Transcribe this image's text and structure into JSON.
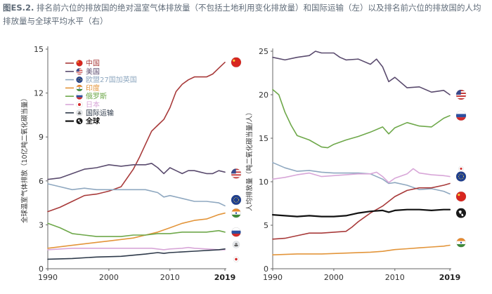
{
  "caption": {
    "figure_id": "图ES.2.",
    "text": "排名前六位的排放国的绝对温室气体排放量（不包括土地利用变化排放量）和国际运输（左）以及排名前六位的排放国的人均排放量与全球平均水平（右）"
  },
  "colors": {
    "china": "#a83a3a",
    "usa": "#5a4b6e",
    "eu27uk": "#8fa8c0",
    "india": "#e3953a",
    "russia": "#6ea84a",
    "japan": "#d8a6d8",
    "intl_transport": "#2e3a4a",
    "world": "#111111"
  },
  "chart_data": [
    {
      "type": "line",
      "ylabel": "全球温室气体排放（10亿吨二氧化碳当量）",
      "xlim": [
        1990,
        2019
      ],
      "ylim": [
        0,
        15
      ],
      "xticks": [
        "1990",
        "2000",
        "2010",
        "2019"
      ],
      "yticks": [
        "0",
        "3",
        "6",
        "9",
        "12",
        "15"
      ],
      "legend": [
        {
          "key": "china",
          "label": "中国",
          "icon": "china-flag-icon"
        },
        {
          "key": "usa",
          "label": "美国",
          "icon": "usa-flag-icon"
        },
        {
          "key": "eu27uk",
          "label": "欧盟27国加英国",
          "icon": "eu-flag-icon"
        },
        {
          "key": "india",
          "label": "印度",
          "icon": "india-flag-icon"
        },
        {
          "key": "russia",
          "label": "俄罗斯",
          "icon": "russia-flag-icon"
        },
        {
          "key": "japan",
          "label": "日本",
          "icon": "japan-flag-icon"
        },
        {
          "key": "intl_transport",
          "label": "国际运输",
          "icon": "ship-icon"
        },
        {
          "key": "world",
          "label": "全球",
          "icon": "globe-icon"
        }
      ],
      "series": [
        {
          "key": "china",
          "x": [
            1990,
            1992,
            1994,
            1996,
            1998,
            2000,
            2002,
            2004,
            2005,
            2006,
            2007,
            2008,
            2009,
            2010,
            2011,
            2012,
            2013,
            2014,
            2015,
            2016,
            2017,
            2018,
            2019
          ],
          "y": [
            3.9,
            4.2,
            4.6,
            5.0,
            5.1,
            5.3,
            5.6,
            6.8,
            7.6,
            8.5,
            9.4,
            9.8,
            10.2,
            11.0,
            12.1,
            12.6,
            12.9,
            13.1,
            13.1,
            13.1,
            13.3,
            13.7,
            14.1
          ]
        },
        {
          "key": "usa",
          "x": [
            1990,
            1992,
            1994,
            1996,
            1998,
            2000,
            2002,
            2004,
            2006,
            2007,
            2008,
            2009,
            2010,
            2011,
            2012,
            2013,
            2014,
            2015,
            2016,
            2017,
            2018,
            2019
          ],
          "y": [
            6.1,
            6.2,
            6.5,
            6.8,
            6.9,
            7.1,
            7.0,
            7.1,
            7.1,
            7.2,
            6.9,
            6.5,
            6.9,
            6.7,
            6.5,
            6.7,
            6.7,
            6.6,
            6.5,
            6.5,
            6.7,
            6.6
          ]
        },
        {
          "key": "eu27uk",
          "x": [
            1990,
            1992,
            1994,
            1996,
            1998,
            2000,
            2002,
            2004,
            2006,
            2008,
            2009,
            2010,
            2012,
            2014,
            2016,
            2018,
            2019
          ],
          "y": [
            5.8,
            5.6,
            5.4,
            5.5,
            5.4,
            5.4,
            5.4,
            5.4,
            5.4,
            5.2,
            4.9,
            5.0,
            4.8,
            4.6,
            4.6,
            4.5,
            4.3
          ]
        },
        {
          "key": "india",
          "x": [
            1990,
            1994,
            1998,
            2000,
            2002,
            2004,
            2006,
            2008,
            2010,
            2012,
            2014,
            2016,
            2018,
            2019
          ],
          "y": [
            1.4,
            1.6,
            1.8,
            1.9,
            2.0,
            2.1,
            2.3,
            2.5,
            2.8,
            3.1,
            3.3,
            3.4,
            3.7,
            3.8
          ]
        },
        {
          "key": "russia",
          "x": [
            1990,
            1992,
            1994,
            1996,
            1998,
            2000,
            2002,
            2004,
            2006,
            2008,
            2010,
            2012,
            2014,
            2016,
            2018,
            2019
          ],
          "y": [
            3.1,
            2.8,
            2.4,
            2.3,
            2.2,
            2.2,
            2.2,
            2.3,
            2.3,
            2.4,
            2.4,
            2.5,
            2.5,
            2.5,
            2.6,
            2.5
          ]
        },
        {
          "key": "japan",
          "x": [
            1990,
            1994,
            1998,
            2000,
            2004,
            2007,
            2009,
            2010,
            2012,
            2013,
            2014,
            2016,
            2018,
            2019
          ],
          "y": [
            1.3,
            1.4,
            1.4,
            1.4,
            1.4,
            1.4,
            1.3,
            1.35,
            1.4,
            1.45,
            1.4,
            1.35,
            1.3,
            1.3
          ]
        },
        {
          "key": "intl_transport",
          "x": [
            1990,
            1994,
            1998,
            2002,
            2006,
            2008,
            2009,
            2010,
            2014,
            2018,
            2019
          ],
          "y": [
            0.65,
            0.7,
            0.8,
            0.85,
            1.0,
            1.1,
            1.05,
            1.1,
            1.2,
            1.3,
            1.35
          ]
        }
      ]
    },
    {
      "type": "line",
      "ylabel": "人均排放量（吨二氧化碳当量/人）",
      "xlim": [
        1990,
        2019
      ],
      "ylim": [
        0,
        25
      ],
      "xticks": [
        "1990",
        "2000",
        "2010",
        "2019"
      ],
      "yticks": [
        "0",
        "5",
        "10",
        "15",
        "20",
        "25"
      ],
      "series": [
        {
          "key": "usa",
          "x": [
            1990,
            1992,
            1994,
            1996,
            1997,
            1998,
            2000,
            2001,
            2002,
            2004,
            2006,
            2007,
            2008,
            2009,
            2010,
            2012,
            2014,
            2016,
            2018,
            2019
          ],
          "y": [
            24.3,
            24.0,
            24.3,
            24.5,
            25.0,
            24.8,
            24.8,
            24.3,
            24.0,
            24.1,
            23.5,
            24.1,
            23.2,
            21.5,
            22.0,
            20.8,
            20.9,
            20.3,
            20.5,
            20.0
          ]
        },
        {
          "key": "russia",
          "x": [
            1990,
            1991,
            1992,
            1993,
            1994,
            1996,
            1998,
            1999,
            2000,
            2002,
            2004,
            2006,
            2008,
            2009,
            2010,
            2012,
            2014,
            2016,
            2018,
            2019
          ],
          "y": [
            20.6,
            20.0,
            18.0,
            16.5,
            15.3,
            14.8,
            14.0,
            13.9,
            14.3,
            14.8,
            15.2,
            15.7,
            16.3,
            15.5,
            16.2,
            16.8,
            16.4,
            16.3,
            17.3,
            17.6
          ]
        },
        {
          "key": "eu27uk",
          "x": [
            1990,
            1992,
            1994,
            1996,
            1998,
            2000,
            2002,
            2004,
            2006,
            2008,
            2009,
            2010,
            2012,
            2014,
            2016,
            2018,
            2019
          ],
          "y": [
            12.2,
            11.6,
            11.2,
            11.3,
            11.1,
            11.0,
            11.0,
            11.0,
            10.9,
            10.3,
            9.8,
            9.9,
            9.6,
            9.1,
            9.2,
            8.9,
            8.6
          ]
        },
        {
          "key": "japan",
          "x": [
            1990,
            1992,
            1994,
            1996,
            1998,
            2000,
            2002,
            2004,
            2006,
            2007,
            2008,
            2009,
            2010,
            2012,
            2013,
            2014,
            2016,
            2018,
            2019
          ],
          "y": [
            10.3,
            10.5,
            10.8,
            11.0,
            10.6,
            10.7,
            10.8,
            10.9,
            10.9,
            11.1,
            10.6,
            9.9,
            10.4,
            10.9,
            11.5,
            11.0,
            10.8,
            10.7,
            10.6
          ]
        },
        {
          "key": "china",
          "x": [
            1990,
            1992,
            1994,
            1996,
            1998,
            2000,
            2002,
            2003,
            2004,
            2005,
            2006,
            2008,
            2010,
            2012,
            2014,
            2016,
            2018,
            2019
          ],
          "y": [
            3.4,
            3.5,
            3.8,
            4.1,
            4.1,
            4.2,
            4.3,
            4.8,
            5.4,
            5.9,
            6.4,
            7.2,
            8.3,
            9.0,
            9.3,
            9.3,
            9.6,
            9.8
          ]
        },
        {
          "key": "world",
          "x": [
            1990,
            1992,
            1994,
            1996,
            1998,
            2000,
            2002,
            2004,
            2006,
            2008,
            2009,
            2010,
            2012,
            2014,
            2016,
            2018,
            2019
          ],
          "y": [
            6.2,
            6.1,
            6.0,
            6.1,
            6.0,
            6.0,
            6.1,
            6.4,
            6.6,
            6.7,
            6.5,
            6.7,
            6.8,
            6.8,
            6.7,
            6.8,
            6.8
          ]
        },
        {
          "key": "india",
          "x": [
            1990,
            1994,
            1998,
            2002,
            2006,
            2008,
            2010,
            2012,
            2014,
            2016,
            2018,
            2019
          ],
          "y": [
            1.6,
            1.7,
            1.7,
            1.8,
            1.9,
            2.0,
            2.2,
            2.3,
            2.4,
            2.5,
            2.6,
            2.7
          ]
        },
        {
          "key": "intl_transport",
          "x": [],
          "y": []
        }
      ]
    }
  ]
}
